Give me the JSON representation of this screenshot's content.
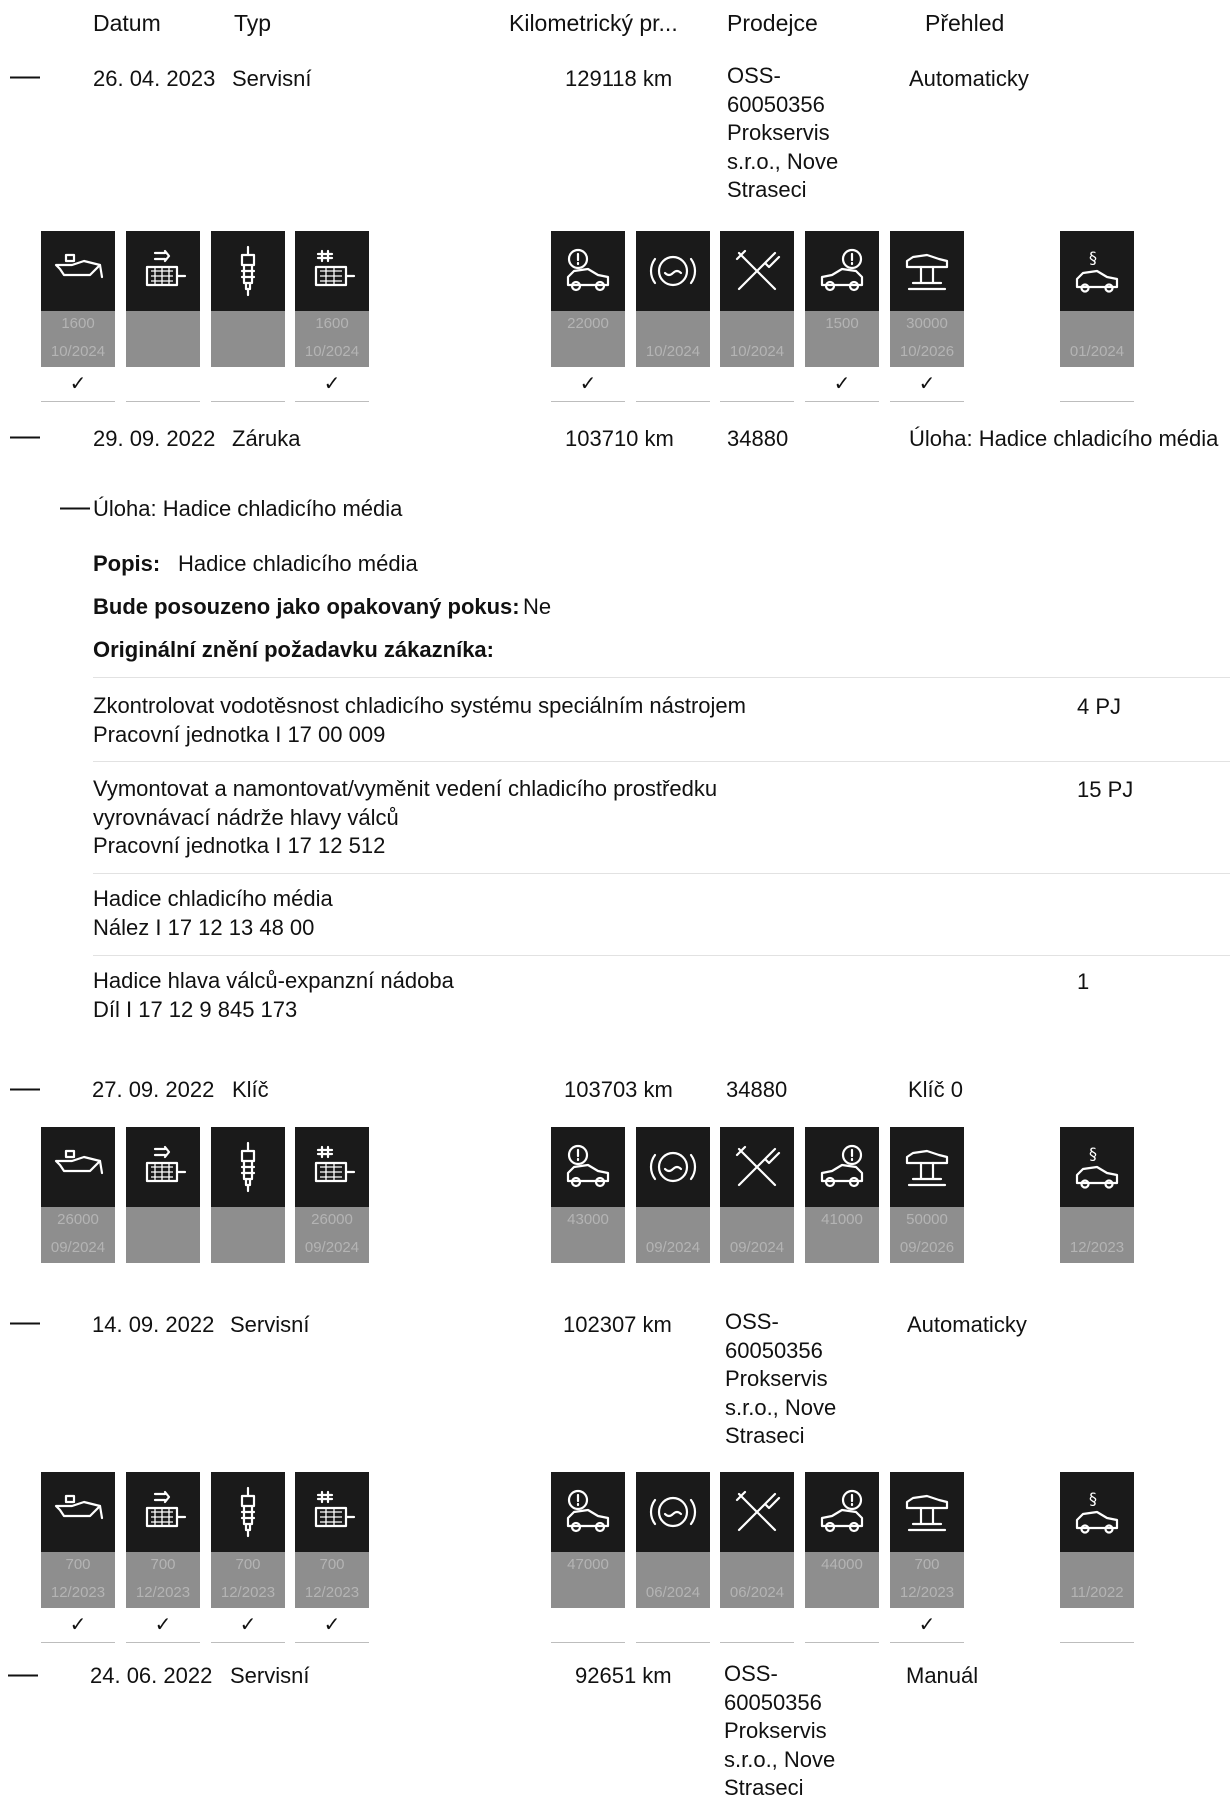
{
  "header": {
    "date": "Datum",
    "type": "Typ",
    "mileage": "Kilometrický pr...",
    "dealer": "Prodejce",
    "overview": "Přehled"
  },
  "collapse_symbol": "—",
  "dealer_oss": [
    "OSS-",
    "60050356",
    "Prokservis",
    "s.r.o., Nove",
    "Straseci"
  ],
  "records": [
    {
      "date": "26. 04. 2023",
      "type": "Servisní",
      "km": "129118 km",
      "overview": "Automaticky"
    },
    {
      "date": "29. 09. 2022",
      "type": "Záruka",
      "km": "103710 km",
      "dealer": "34880",
      "overview": "Úloha: Hadice chladicího média"
    },
    {
      "date": "27. 09. 2022",
      "type": "Klíč",
      "km": "103703 km",
      "dealer": "34880",
      "overview": "Klíč 0"
    },
    {
      "date": "14. 09. 2022",
      "type": "Servisní",
      "km": "102307 km",
      "overview": "Automaticky"
    },
    {
      "date": "24. 06. 2022",
      "type": "Servisní",
      "km": "92651 km",
      "overview": "Manuál"
    }
  ],
  "task": {
    "heading": "Úloha: Hadice chladicího média",
    "popis_label": "Popis:",
    "popis_value": "Hadice chladicího média",
    "repeat_label": "Bude posouzeno jako opakovaný pokus:",
    "repeat_value": "Ne",
    "original_label": "Originální znění požadavku zákazníka:",
    "items": [
      {
        "line1": "Zkontrolovat vodotěsnost chladicího systému speciálním nástrojem",
        "line2": "Pracovní jednotka I 17 00 009",
        "qty": "4 PJ"
      },
      {
        "line1": "Vymontovat a namontovat/vyměnit vedení chladicího prostředku",
        "line2": "vyrovnávací nádrže hlavy válců",
        "line3": "Pracovní jednotka I 17 12 512",
        "qty": "15 PJ"
      },
      {
        "line1": "Hadice chladicího média",
        "line2": "Nález I 17 12 13 48 00",
        "qty": ""
      },
      {
        "line1": "Hadice hlava válců-expanzní nádoba",
        "line2": "Díl I 17 12 9 845 173",
        "qty": "1"
      }
    ]
  },
  "icon_sets": [
    {
      "tiles": [
        {
          "icon": "engine-oil-icon",
          "l1": "1600",
          "l2": "10/2024",
          "check": "✓"
        },
        {
          "icon": "microfilter-icon",
          "l1": "",
          "l2": "",
          "check": ""
        },
        {
          "icon": "spark-plug-icon",
          "l1": "",
          "l2": "",
          "check": ""
        },
        {
          "icon": "fuel-filter-icon",
          "l1": "1600",
          "l2": "10/2024",
          "check": "✓"
        },
        {
          "icon": "front-brake-icon",
          "l1": "22000",
          "l2": "",
          "check": "✓"
        },
        {
          "icon": "brake-fluid-icon",
          "l1": "",
          "l2": "10/2024",
          "check": ""
        },
        {
          "icon": "service-tools-icon",
          "l1": "",
          "l2": "10/2024",
          "check": ""
        },
        {
          "icon": "rear-brake-icon",
          "l1": "1500",
          "l2": "",
          "check": "✓"
        },
        {
          "icon": "vehicle-inspection-icon",
          "l1": "30000",
          "l2": "10/2026",
          "check": "✓"
        },
        {
          "icon": "statutory-inspection-icon",
          "l1": "",
          "l2": "01/2024",
          "check": ""
        }
      ]
    },
    {
      "tiles": [
        {
          "icon": "engine-oil-icon",
          "l1": "26000",
          "l2": "09/2024",
          "check": ""
        },
        {
          "icon": "microfilter-icon",
          "l1": "",
          "l2": "",
          "check": ""
        },
        {
          "icon": "spark-plug-icon",
          "l1": "",
          "l2": "",
          "check": ""
        },
        {
          "icon": "fuel-filter-icon",
          "l1": "26000",
          "l2": "09/2024",
          "check": ""
        },
        {
          "icon": "front-brake-icon",
          "l1": "43000",
          "l2": "",
          "check": ""
        },
        {
          "icon": "brake-fluid-icon",
          "l1": "",
          "l2": "09/2024",
          "check": ""
        },
        {
          "icon": "service-tools-icon",
          "l1": "",
          "l2": "09/2024",
          "check": ""
        },
        {
          "icon": "rear-brake-icon",
          "l1": "41000",
          "l2": "",
          "check": ""
        },
        {
          "icon": "vehicle-inspection-icon",
          "l1": "50000",
          "l2": "09/2026",
          "check": ""
        },
        {
          "icon": "statutory-inspection-icon",
          "l1": "",
          "l2": "12/2023",
          "check": ""
        }
      ]
    },
    {
      "tiles": [
        {
          "icon": "engine-oil-icon",
          "l1": "700",
          "l2": "12/2023",
          "check": "✓"
        },
        {
          "icon": "microfilter-icon",
          "l1": "700",
          "l2": "12/2023",
          "check": "✓"
        },
        {
          "icon": "spark-plug-icon",
          "l1": "700",
          "l2": "12/2023",
          "check": "✓"
        },
        {
          "icon": "fuel-filter-icon",
          "l1": "700",
          "l2": "12/2023",
          "check": "✓"
        },
        {
          "icon": "front-brake-icon",
          "l1": "47000",
          "l2": "",
          "check": ""
        },
        {
          "icon": "brake-fluid-icon",
          "l1": "",
          "l2": "06/2024",
          "check": ""
        },
        {
          "icon": "service-tools-icon",
          "l1": "",
          "l2": "06/2024",
          "check": ""
        },
        {
          "icon": "rear-brake-icon",
          "l1": "44000",
          "l2": "",
          "check": ""
        },
        {
          "icon": "vehicle-inspection-icon",
          "l1": "700",
          "l2": "12/2023",
          "check": "✓"
        },
        {
          "icon": "statutory-inspection-icon",
          "l1": "",
          "l2": "11/2022",
          "check": ""
        }
      ]
    }
  ]
}
